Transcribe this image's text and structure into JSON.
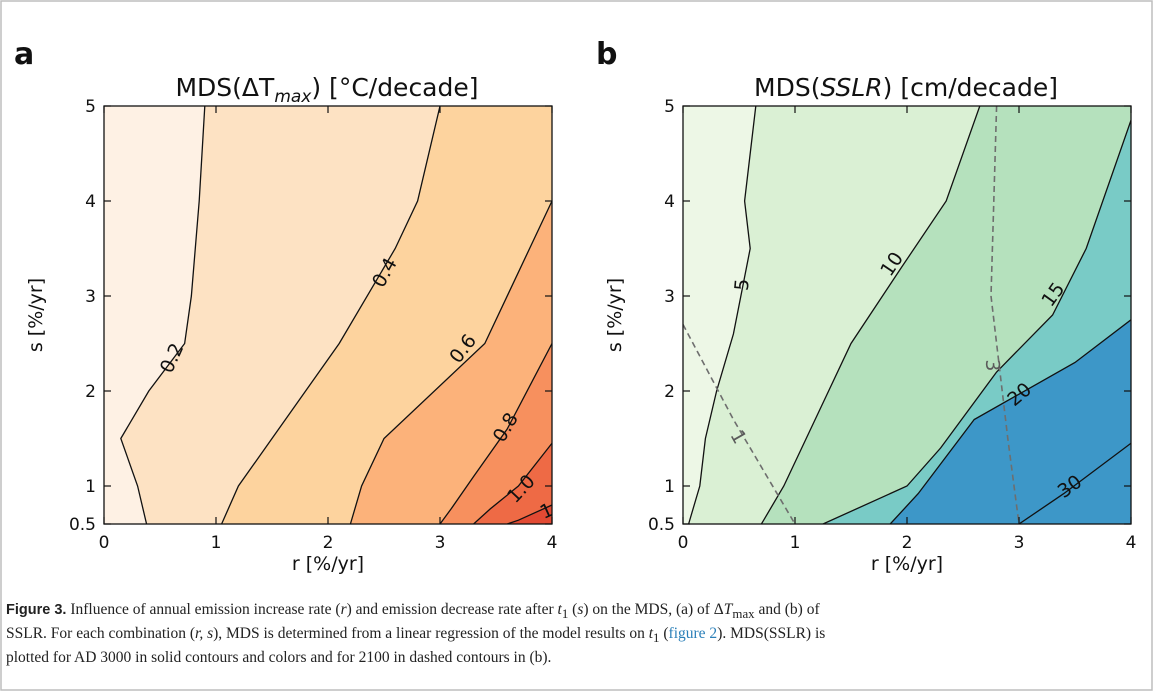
{
  "chart_data": [
    {
      "panel_label": "a",
      "title": "MDS(ΔT",
      "title_sub": "max",
      "title_suffix": ") [°C/decade]",
      "type": "contour",
      "xlabel": "r [%/yr]",
      "ylabel": "s [%/yr]",
      "xlim": [
        0,
        4
      ],
      "ylim": [
        0.5,
        5
      ],
      "xticks": [
        "0",
        "1",
        "2",
        "3",
        "4"
      ],
      "yticks": [
        "0.5",
        "1",
        "2",
        "3",
        "4",
        "5"
      ],
      "fill_colors": [
        "#fef1e4",
        "#fde2c3",
        "#fdd39e",
        "#fcb27a",
        "#f7905e",
        "#ee6a45",
        "#e24a33"
      ],
      "contours": [
        {
          "level": "0.2",
          "points": [
            [
              0.9,
              5
            ],
            [
              0.85,
              4
            ],
            [
              0.78,
              3
            ],
            [
              0.72,
              2.5
            ],
            [
              0.4,
              2
            ],
            [
              0.15,
              1.5
            ],
            [
              0.3,
              1
            ],
            [
              0.38,
              0.5
            ]
          ],
          "label_at": [
            0.6,
            2.35
          ]
        },
        {
          "level": "0.4",
          "points": [
            [
              3.0,
              5
            ],
            [
              2.8,
              4
            ],
            [
              2.6,
              3.5
            ],
            [
              2.1,
              2.5
            ],
            [
              1.8,
              2.0
            ],
            [
              1.5,
              1.5
            ],
            [
              1.2,
              1
            ],
            [
              1.05,
              0.5
            ]
          ],
          "label_at": [
            2.5,
            3.25
          ]
        },
        {
          "level": "0.6",
          "points": [
            [
              4.0,
              4.0
            ],
            [
              3.8,
              3.5
            ],
            [
              3.4,
              2.5
            ],
            [
              2.5,
              1.5
            ],
            [
              2.3,
              1
            ],
            [
              2.2,
              0.5
            ]
          ],
          "label_at": [
            3.2,
            2.45
          ]
        },
        {
          "level": "0.8",
          "points": [
            [
              4.0,
              2.5
            ],
            [
              3.6,
              1.6
            ],
            [
              3.3,
              1.1
            ],
            [
              3.1,
              0.7
            ],
            [
              3.0,
              0.5
            ]
          ],
          "label_at": [
            3.58,
            1.62
          ]
        },
        {
          "level": "1.0",
          "points": [
            [
              4.0,
              1.45
            ],
            [
              3.7,
              1.0
            ],
            [
              3.45,
              0.7
            ],
            [
              3.3,
              0.5
            ]
          ],
          "label_at": [
            3.72,
            0.97
          ]
        },
        {
          "level": "1",
          "points": [
            [
              4.0,
              0.75
            ],
            [
              3.7,
              0.55
            ],
            [
              3.6,
              0.5
            ]
          ],
          "label_at": [
            3.95,
            0.68
          ]
        }
      ]
    },
    {
      "panel_label": "b",
      "title": "MDS(",
      "title_ital": "SSLR",
      "title_suffix": ") [cm/decade]",
      "type": "contour",
      "xlabel": "r [%/yr]",
      "ylabel": "s [%/yr]",
      "xlim": [
        0,
        4
      ],
      "ylim": [
        0.5,
        5
      ],
      "xticks": [
        "0",
        "1",
        "2",
        "3",
        "4"
      ],
      "yticks": [
        "0.5",
        "1",
        "2",
        "3",
        "4",
        "5"
      ],
      "fill_colors": [
        "#edf7e6",
        "#daf0d4",
        "#b5e1bd",
        "#79cbc6",
        "#3d97c8"
      ],
      "contours": [
        {
          "level": "5",
          "points": [
            [
              0.65,
              5
            ],
            [
              0.55,
              4
            ],
            [
              0.6,
              3.5
            ],
            [
              0.45,
              2.6
            ],
            [
              0.3,
              2
            ],
            [
              0.2,
              1.5
            ],
            [
              0.15,
              1
            ],
            [
              0.05,
              0.5
            ]
          ],
          "label_at": [
            0.52,
            3.12
          ]
        },
        {
          "level": "10",
          "points": [
            [
              2.65,
              5
            ],
            [
              2.35,
              4
            ],
            [
              1.95,
              3.3
            ],
            [
              1.5,
              2.5
            ],
            [
              1.3,
              2.0
            ],
            [
              1.1,
              1.5
            ],
            [
              0.9,
              1.0
            ],
            [
              0.7,
              0.5
            ]
          ],
          "label_at": [
            1.86,
            3.34
          ]
        },
        {
          "level": "15",
          "points": [
            [
              4.0,
              4.85
            ],
            [
              3.6,
              3.5
            ],
            [
              3.3,
              2.8
            ],
            [
              2.8,
              2.2
            ],
            [
              2.3,
              1.4
            ],
            [
              2.0,
              1.0
            ],
            [
              1.25,
              0.5
            ]
          ],
          "label_at": [
            3.3,
            3.02
          ]
        },
        {
          "level": "20",
          "points": [
            [
              4.0,
              2.75
            ],
            [
              3.5,
              2.3
            ],
            [
              2.6,
              1.7
            ],
            [
              2.1,
              0.9
            ],
            [
              1.85,
              0.5
            ]
          ],
          "label_at": [
            3.0,
            1.97
          ]
        },
        {
          "level": "30",
          "points": [
            [
              4.0,
              1.45
            ],
            [
              3.4,
              0.9
            ],
            [
              3.0,
              0.5
            ]
          ],
          "label_at": [
            3.45,
            1.0
          ]
        }
      ],
      "dashed_contours": [
        {
          "level": "1",
          "points": [
            [
              0.0,
              2.7
            ],
            [
              0.45,
              1.7
            ],
            [
              1.0,
              0.5
            ]
          ],
          "label_at": [
            0.5,
            1.52
          ]
        },
        {
          "level": "3",
          "points": [
            [
              2.8,
              5
            ],
            [
              2.75,
              3.0
            ],
            [
              2.9,
              1.5
            ],
            [
              3.0,
              0.5
            ]
          ],
          "label_at": [
            2.77,
            2.27
          ]
        }
      ]
    }
  ],
  "caption": {
    "label": "Figure 3.",
    "line1_a": " Influence of annual emission increase rate (",
    "line1_r": "r",
    "line1_b": ") and emission decrease rate after ",
    "line1_t": "t",
    "line1_tsub": "1",
    "line1_c": " (",
    "line1_s": "s",
    "line1_d": ") on the MDS, (a) of Δ",
    "line1_T": "T",
    "line1_Tsub": "max",
    "line1_e": " and (b) of",
    "line2_a": "SSLR. For each combination (",
    "line2_rs": "r, s",
    "line2_b": "), MDS is determined from a linear regression of the model results on ",
    "line2_t": "t",
    "line2_tsub": "1",
    "line2_c": " (",
    "line2_fig": "figure 2",
    "line2_d": "). MDS(SSLR) is",
    "line3": "plotted for AD 3000 in solid contours and colors and for 2100 in dashed contours in (b)."
  }
}
